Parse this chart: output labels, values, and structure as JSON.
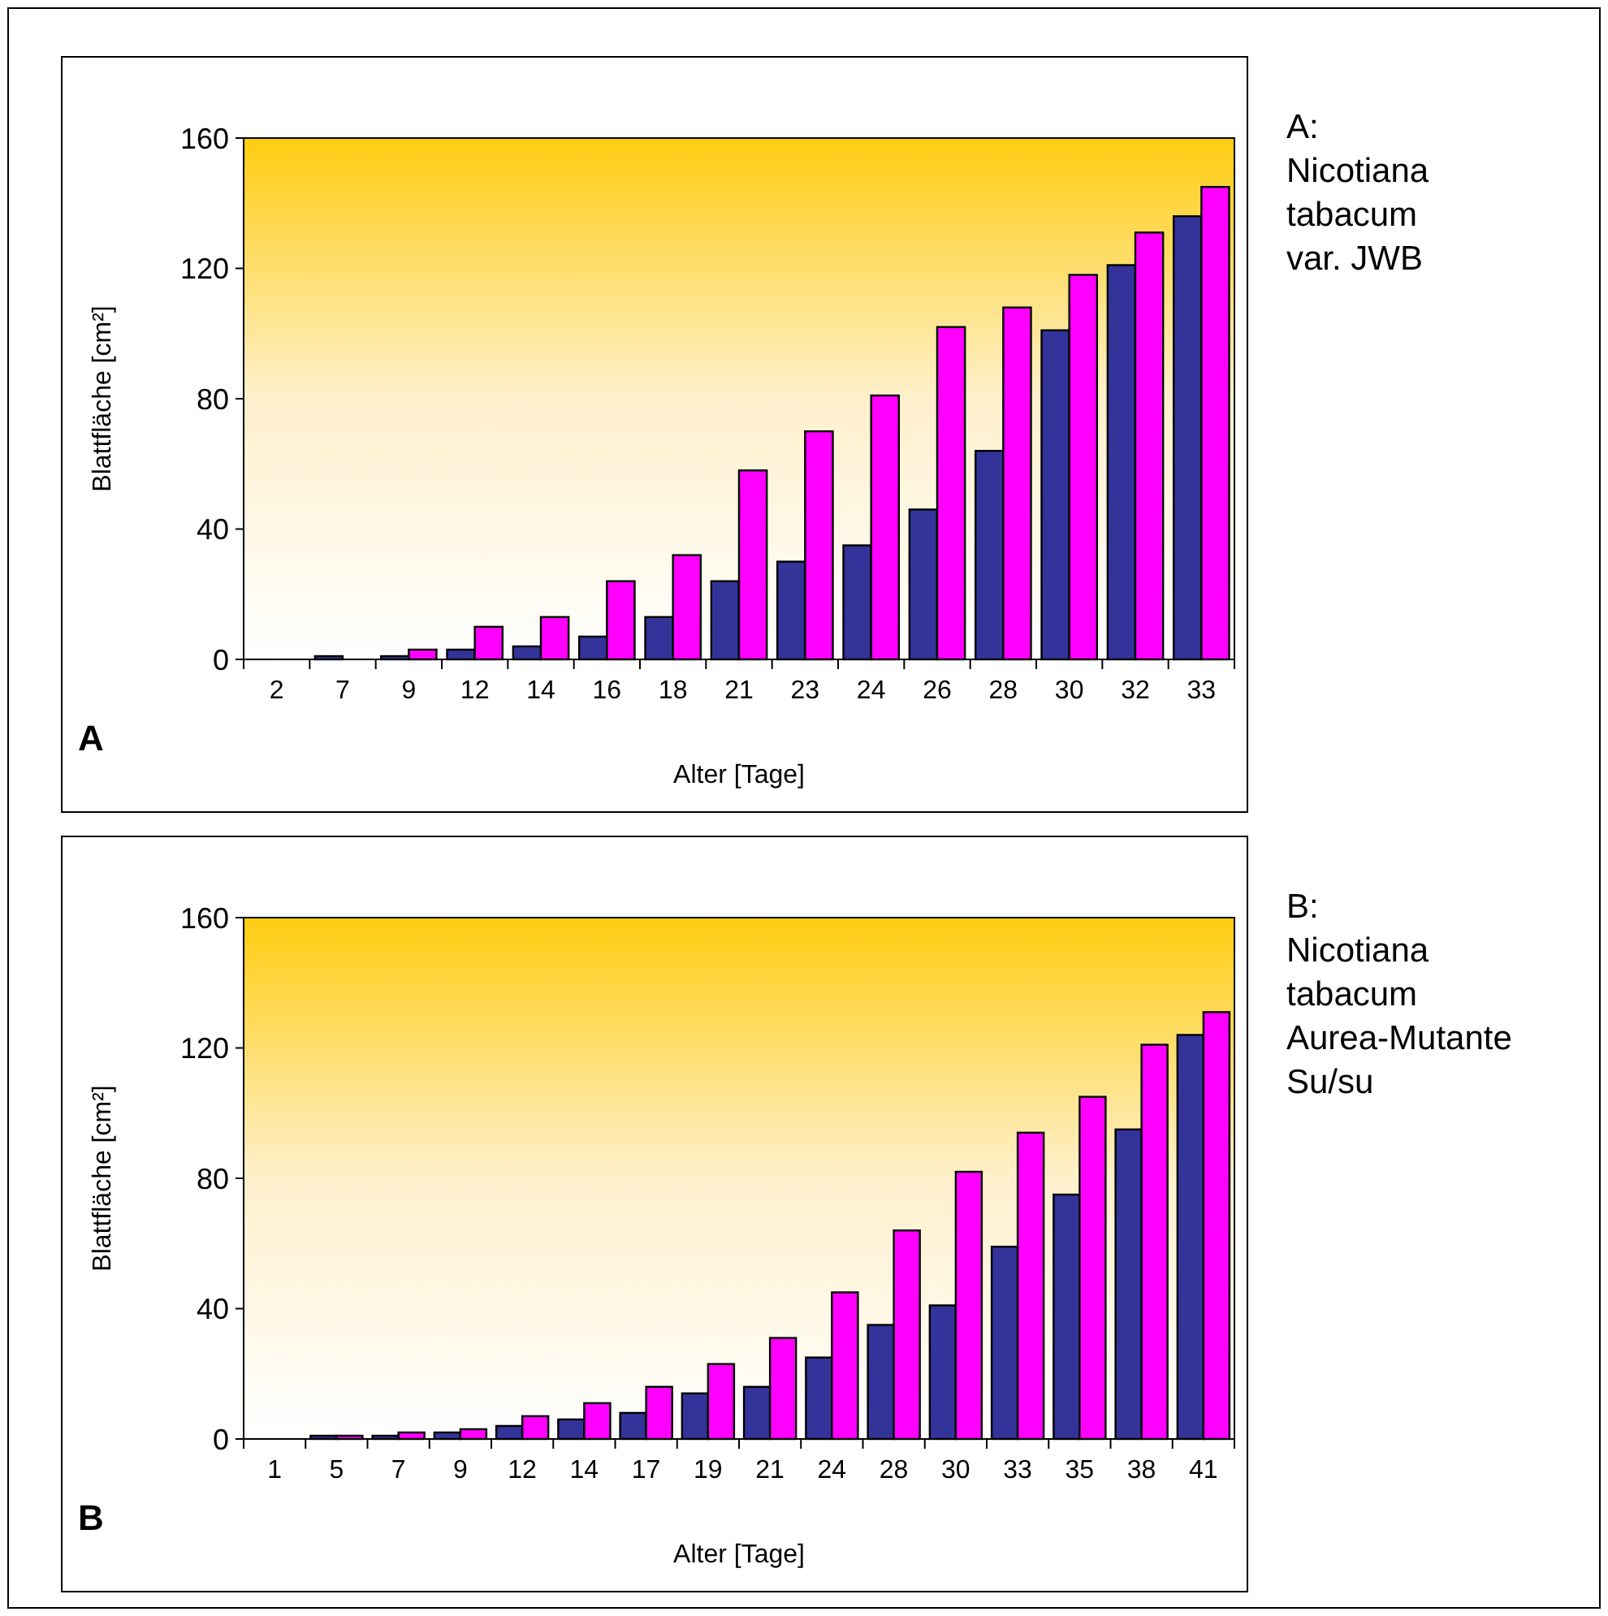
{
  "chart_data": [
    {
      "type": "bar",
      "xlabel": "Alter [Tage]",
      "ylabel": "Blattfläche [cm²]",
      "categories": [
        "2",
        "7",
        "9",
        "12",
        "14",
        "16",
        "18",
        "21",
        "23",
        "24",
        "26",
        "28",
        "30",
        "32",
        "33"
      ],
      "series": [
        {
          "color": "#333399",
          "values": [
            0,
            1,
            1,
            3,
            4,
            7,
            13,
            24,
            30,
            35,
            46,
            64,
            101,
            121,
            136
          ]
        },
        {
          "color": "#ff00ff",
          "values": [
            0,
            0,
            3,
            10,
            13,
            24,
            32,
            58,
            70,
            81,
            102,
            108,
            118,
            131,
            145
          ]
        }
      ],
      "ylim": [
        0,
        160
      ],
      "yticks": [
        0,
        40,
        80,
        120,
        160
      ],
      "grid": false,
      "annotations": [
        "A",
        "A: Nicotiana tabacum var. JWB"
      ]
    },
    {
      "type": "bar",
      "xlabel": "Alter [Tage]",
      "ylabel": "Blattfläche [cm²]",
      "categories": [
        "1",
        "5",
        "7",
        "9",
        "12",
        "14",
        "17",
        "19",
        "21",
        "24",
        "28",
        "30",
        "33",
        "35",
        "38",
        "41"
      ],
      "series": [
        {
          "color": "#333399",
          "values": [
            0,
            1,
            1,
            2,
            4,
            6,
            8,
            14,
            16,
            25,
            35,
            41,
            59,
            75,
            95,
            124
          ]
        },
        {
          "color": "#ff00ff",
          "values": [
            0,
            1,
            2,
            3,
            7,
            11,
            16,
            23,
            31,
            45,
            64,
            82,
            94,
            105,
            121,
            131
          ]
        }
      ],
      "ylim": [
        0,
        160
      ],
      "yticks": [
        0,
        40,
        80,
        120,
        160
      ],
      "grid": false,
      "annotations": [
        "B",
        "B: Nicotiana tabacum Aurea-Mutante Su/su"
      ]
    }
  ]
}
